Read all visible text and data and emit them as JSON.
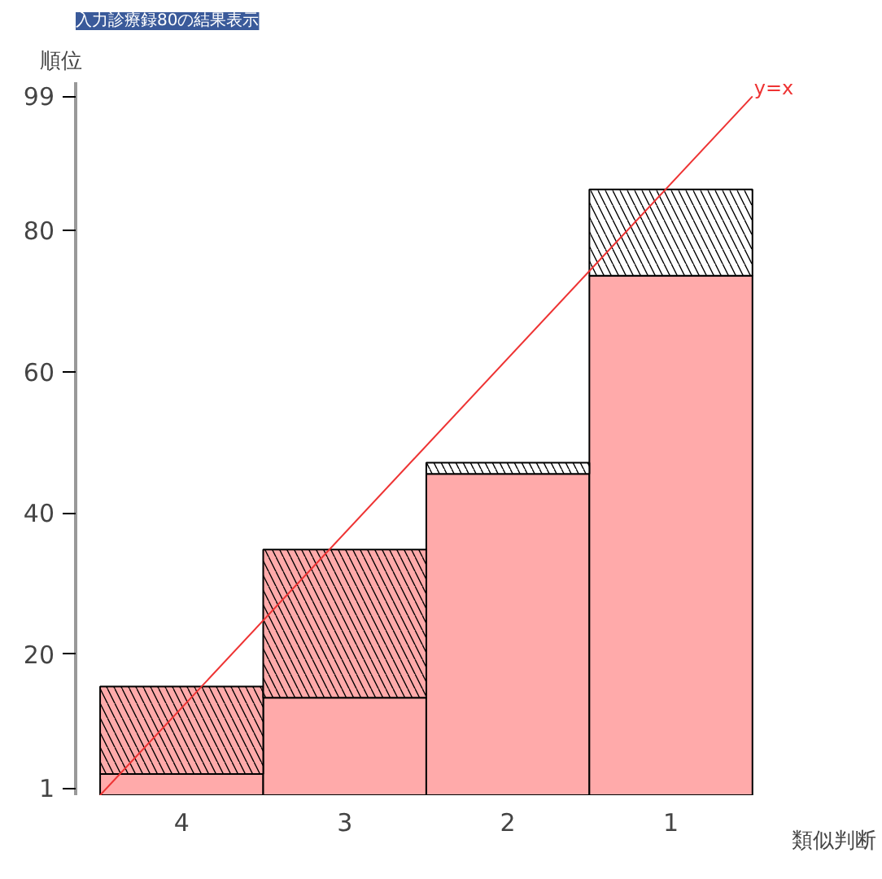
{
  "chart_data": {
    "type": "bar",
    "title": "入力診療録80の結果表示",
    "xlabel": "類似判断",
    "ylabel": "順位",
    "categories": [
      "4",
      "3",
      "2",
      "1"
    ],
    "stacked": true,
    "series": [
      {
        "color": "#ffaaaa",
        "values": [
          3,
          13.8,
          45.5,
          73.6
        ]
      },
      {
        "colors": [
          "#ffaaaa",
          "#ffaaaa",
          "#ffffff",
          "#ffffff"
        ],
        "values": [
          12.4,
          21,
          1.6,
          12.2
        ]
      }
    ],
    "annotations": [
      "y=x"
    ],
    "ylim": [
      0,
      101
    ],
    "yticks": [
      1,
      20,
      40,
      60,
      80,
      99
    ],
    "grid": false
  }
}
